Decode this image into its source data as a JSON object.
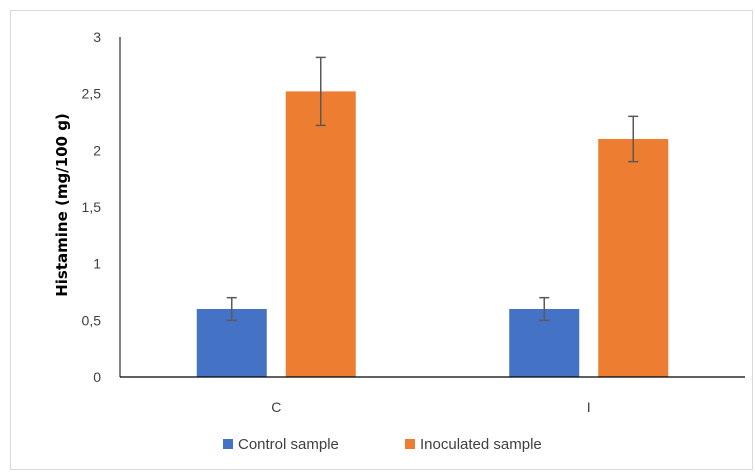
{
  "chart_data": {
    "type": "bar",
    "categories": [
      "C",
      "I"
    ],
    "series": [
      {
        "name": "Control sample",
        "color": "#4472c4",
        "values": [
          0.6,
          0.6
        ],
        "errors": [
          0.1,
          0.1
        ]
      },
      {
        "name": "Inoculated sample",
        "color": "#ed7d31",
        "values": [
          2.52,
          2.1
        ],
        "errors": [
          0.3,
          0.2
        ]
      }
    ],
    "ylabel": "Histamine (mg/100 g)",
    "ylim": [
      0,
      3
    ],
    "yticks": [
      "0",
      "0,5",
      "1",
      "1,5",
      "2",
      "2,5",
      "3"
    ],
    "ytick_values": [
      0,
      0.5,
      1,
      1.5,
      2,
      2.5,
      3
    ],
    "legend_position": "bottom",
    "grid": false
  }
}
